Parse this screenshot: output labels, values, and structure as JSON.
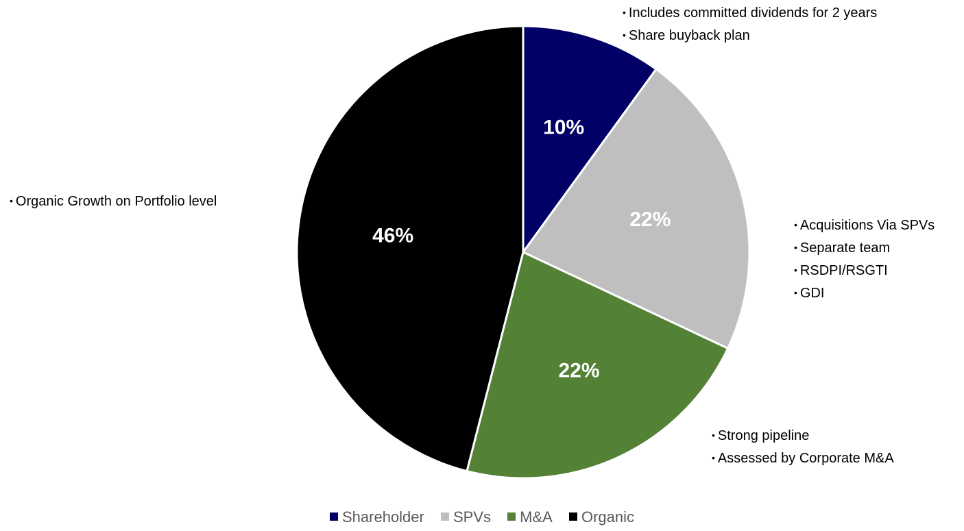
{
  "chart_data": {
    "type": "pie",
    "title": "",
    "slices": [
      {
        "name": "Shareholder",
        "value": 10,
        "label": "10%",
        "color": "#000066"
      },
      {
        "name": "SPVs",
        "value": 22,
        "label": "22%",
        "color": "#BFBFBF"
      },
      {
        "name": "M&A",
        "value": 22,
        "label": "22%",
        "color": "#538135"
      },
      {
        "name": "Organic",
        "value": 46,
        "label": "46%",
        "color": "#000000"
      }
    ],
    "start_angle_deg": 0,
    "direction": "clockwise",
    "legend_position": "bottom"
  },
  "annotations": {
    "shareholder": [
      "Includes committed dividends for 2 years",
      "Share buyback plan"
    ],
    "spvs": [
      "Acquisitions Via SPVs",
      "Separate team",
      "RSDPI/RSGTI",
      "GDI"
    ],
    "ma": [
      "Strong pipeline",
      "Assessed by Corporate M&A"
    ],
    "organic": [
      "Organic Growth on Portfolio level"
    ]
  },
  "bullet_glyph": "•"
}
